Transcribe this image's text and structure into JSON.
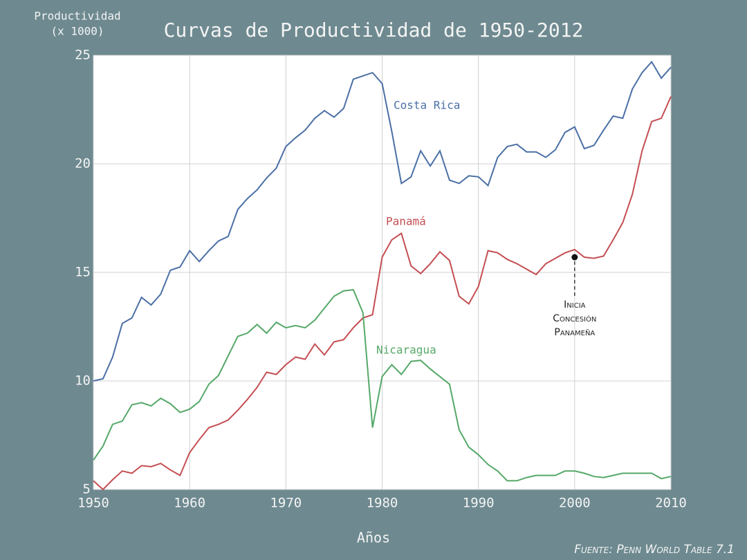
{
  "chart_data": {
    "type": "line",
    "title": "Curvas de Productividad de 1950-2012",
    "y_label": [
      "Productividad",
      "(x 1000)"
    ],
    "x_label": "Años",
    "source": "Fuente: Penn World Table 7.1",
    "x": [
      1950,
      1951,
      1952,
      1953,
      1954,
      1955,
      1956,
      1957,
      1958,
      1959,
      1960,
      1961,
      1962,
      1963,
      1964,
      1965,
      1966,
      1967,
      1968,
      1969,
      1970,
      1971,
      1972,
      1973,
      1974,
      1975,
      1976,
      1977,
      1978,
      1979,
      1980,
      1981,
      1982,
      1983,
      1984,
      1985,
      1986,
      1987,
      1988,
      1989,
      1990,
      1991,
      1992,
      1993,
      1994,
      1995,
      1996,
      1997,
      1998,
      1999,
      2000,
      2001,
      2002,
      2003,
      2004,
      2005,
      2006,
      2007,
      2008,
      2009,
      2010
    ],
    "series": [
      {
        "name": "Costa Rica",
        "color": "#4a6fa5",
        "values": [
          10.0,
          10.1,
          11.1,
          12.65,
          12.9,
          13.85,
          13.5,
          14.0,
          15.1,
          15.25,
          16.0,
          15.5,
          16.0,
          16.45,
          16.65,
          17.9,
          18.4,
          18.8,
          19.35,
          19.8,
          20.8,
          21.2,
          21.55,
          22.1,
          22.45,
          22.15,
          22.55,
          23.9,
          24.05,
          24.2,
          23.7,
          21.5,
          19.1,
          19.4,
          20.6,
          19.9,
          20.6,
          19.25,
          19.1,
          19.45,
          19.4,
          19.0,
          20.3,
          20.8,
          20.9,
          20.55,
          20.55,
          20.3,
          20.65,
          21.45,
          21.7,
          20.7,
          20.85,
          21.55,
          22.2,
          22.1,
          23.45,
          24.2,
          24.7,
          23.95,
          24.45
        ]
      },
      {
        "name": "Panamá",
        "color": "#c44e52",
        "values": [
          5.4,
          5.0,
          5.45,
          5.85,
          5.75,
          6.1,
          6.05,
          6.2,
          5.9,
          5.65,
          6.7,
          7.3,
          7.85,
          8.0,
          8.2,
          8.65,
          9.15,
          9.7,
          10.4,
          10.3,
          10.75,
          11.1,
          11.0,
          11.7,
          11.2,
          11.8,
          11.9,
          12.45,
          12.9,
          13.05,
          15.7,
          16.5,
          16.8,
          15.3,
          14.95,
          15.4,
          15.95,
          15.55,
          13.9,
          13.55,
          14.35,
          16.0,
          15.9,
          15.6,
          15.4,
          15.15,
          14.9,
          15.4,
          15.65,
          15.9,
          16.05,
          15.7,
          15.65,
          15.75,
          16.5,
          17.3,
          18.6,
          20.6,
          21.95,
          22.1,
          23.1
        ]
      },
      {
        "name": "Nicaragua",
        "color": "#55a868",
        "values": [
          6.35,
          7.0,
          8.0,
          8.15,
          8.9,
          9.0,
          8.85,
          9.2,
          8.95,
          8.55,
          8.7,
          9.05,
          9.85,
          10.25,
          11.15,
          12.05,
          12.2,
          12.6,
          12.2,
          12.7,
          12.45,
          12.55,
          12.45,
          12.8,
          13.35,
          13.9,
          14.15,
          14.2,
          13.15,
          7.85,
          10.2,
          10.75,
          10.3,
          10.9,
          10.95,
          10.55,
          10.2,
          9.85,
          7.75,
          6.95,
          6.6,
          6.15,
          5.85,
          5.4,
          5.4,
          5.55,
          5.65,
          5.65,
          5.65,
          5.85,
          5.85,
          5.75,
          5.6,
          5.55,
          5.65,
          5.75,
          5.75,
          5.75,
          5.75,
          5.5,
          5.6
        ]
      }
    ],
    "annotation": {
      "x": 2000,
      "y": 15.7,
      "label": [
        "Inicia",
        "Concesión",
        "Panameña"
      ]
    },
    "xlim": [
      1950,
      2010
    ],
    "xticks": [
      1950,
      1960,
      1970,
      1980,
      1990,
      2000,
      2010
    ],
    "ylim": [
      5,
      25
    ],
    "yticks": [
      5,
      10,
      15,
      20,
      25
    ],
    "grid": true
  }
}
